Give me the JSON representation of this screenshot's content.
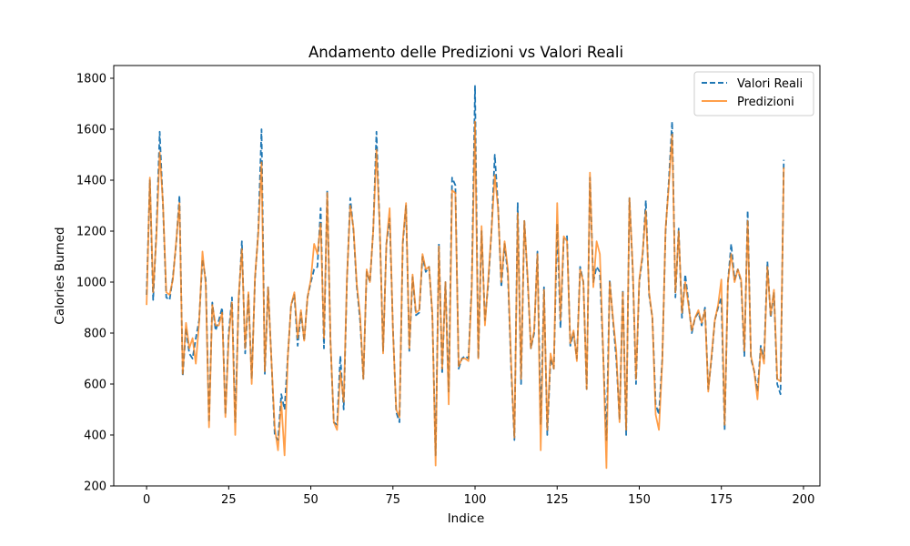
{
  "chart_data": {
    "type": "line",
    "title": "Andamento delle Predizioni vs Valori Reali",
    "xlabel": "Indice",
    "ylabel": "Calories Burned",
    "xlim": [
      -10,
      205
    ],
    "ylim": [
      200,
      1850
    ],
    "xticks": [
      0,
      25,
      50,
      75,
      100,
      125,
      150,
      175,
      200
    ],
    "yticks": [
      200,
      400,
      600,
      800,
      1000,
      1200,
      1400,
      1600,
      1800
    ],
    "grid": false,
    "legend_position": "top-right",
    "series": [
      {
        "name": "Valori Reali",
        "color": "#1f77b4",
        "style": "dashed",
        "values": [
          950,
          1400,
          930,
          1200,
          1590,
          1300,
          940,
          930,
          1020,
          1150,
          1340,
          630,
          820,
          720,
          700,
          780,
          850,
          1090,
          1010,
          450,
          920,
          810,
          850,
          900,
          480,
          800,
          940,
          450,
          920,
          1160,
          720,
          950,
          620,
          1010,
          1200,
          1600,
          640,
          980,
          700,
          400,
          380,
          560,
          500,
          710,
          910,
          950,
          750,
          880,
          770,
          940,
          1000,
          1050,
          1060,
          1290,
          740,
          1360,
          760,
          450,
          440,
          710,
          500,
          1010,
          1330,
          1200,
          980,
          850,
          620,
          1040,
          1000,
          1200,
          1590,
          1200,
          730,
          1150,
          1250,
          820,
          490,
          450,
          1150,
          1300,
          730,
          1020,
          870,
          880,
          1100,
          1040,
          1060,
          870,
          320,
          1150,
          640,
          1000,
          570,
          1410,
          1380,
          660,
          700,
          710,
          700,
          990,
          1770,
          700,
          1200,
          850,
          990,
          1200,
          1500,
          1300,
          980,
          1150,
          1030,
          660,
          380,
          1310,
          600,
          1240,
          1010,
          740,
          800,
          1120,
          440,
          980,
          400,
          700,
          660,
          1230,
          820,
          1170,
          1180,
          750,
          800,
          700,
          1060,
          1000,
          580,
          1410,
          1000,
          1060,
          1040,
          720,
          380,
          1010,
          850,
          700,
          460,
          970,
          400,
          1330,
          1050,
          600,
          1000,
          1100,
          1320,
          950,
          860,
          520,
          480,
          700,
          1200,
          1400,
          1630,
          940,
          1210,
          860,
          1030,
          920,
          800,
          860,
          880,
          830,
          900,
          580,
          700,
          850,
          900,
          940,
          420,
          1000,
          1150,
          1010,
          1050,
          1000,
          710,
          1280,
          700,
          650,
          570,
          750,
          700,
          1080,
          860,
          960,
          600,
          560,
          1480
        ]
      },
      {
        "name": "Predizioni",
        "color": "#ff7f0e",
        "style": "solid",
        "values": [
          910,
          1410,
          960,
          1180,
          1510,
          1310,
          960,
          950,
          1010,
          1160,
          1310,
          640,
          840,
          740,
          780,
          680,
          840,
          1120,
          990,
          430,
          910,
          830,
          830,
          880,
          470,
          780,
          920,
          400,
          940,
          1130,
          740,
          960,
          600,
          1020,
          1190,
          1470,
          650,
          980,
          700,
          430,
          340,
          530,
          320,
          710,
          910,
          960,
          780,
          890,
          770,
          940,
          1010,
          1150,
          1110,
          1230,
          780,
          1350,
          770,
          450,
          420,
          650,
          530,
          1020,
          1300,
          1210,
          990,
          870,
          620,
          1050,
          1000,
          1200,
          1520,
          1210,
          720,
          1150,
          1290,
          810,
          500,
          470,
          1160,
          1310,
          740,
          1030,
          880,
          890,
          1110,
          1050,
          1060,
          880,
          280,
          1140,
          660,
          1000,
          520,
          1360,
          1350,
          670,
          700,
          700,
          690,
          970,
          1630,
          700,
          1220,
          830,
          1010,
          1200,
          1420,
          1290,
          1000,
          1160,
          1050,
          680,
          390,
          1270,
          620,
          1240,
          1020,
          740,
          810,
          1110,
          340,
          970,
          420,
          720,
          660,
          1310,
          850,
          1180,
          1160,
          760,
          810,
          690,
          1050,
          1000,
          580,
          1430,
          980,
          1160,
          1110,
          730,
          270,
          1000,
          860,
          730,
          450,
          960,
          420,
          1330,
          1060,
          620,
          1010,
          1110,
          1280,
          960,
          860,
          480,
          420,
          690,
          1210,
          1380,
          1580,
          960,
          1200,
          880,
          1000,
          910,
          810,
          860,
          890,
          840,
          890,
          570,
          710,
          850,
          910,
          1010,
          440,
          1000,
          1110,
          1000,
          1050,
          1010,
          730,
          1240,
          710,
          650,
          540,
          740,
          680,
          1060,
          870,
          970,
          620,
          610,
          1450
        ]
      }
    ]
  }
}
